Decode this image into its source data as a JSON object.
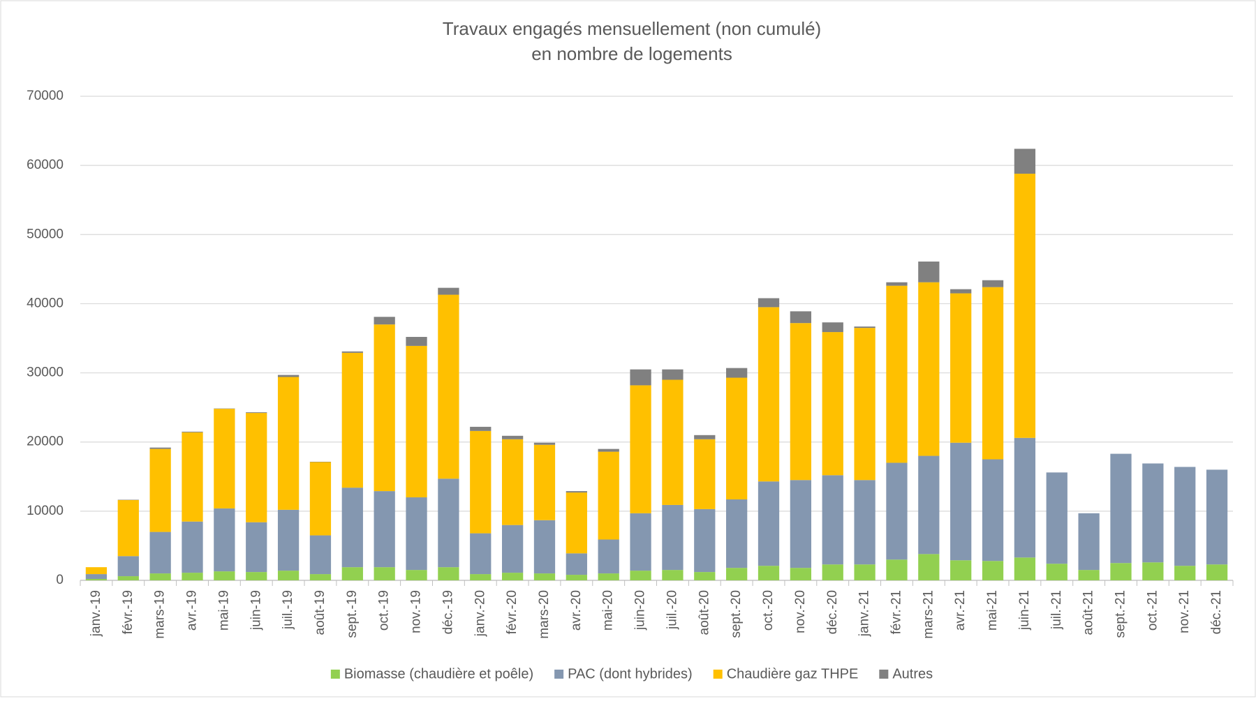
{
  "chart_data": {
    "type": "stacked_bar",
    "title": "Travaux engagés mensuellement (non cumulé)",
    "subtitle": "en nombre de logements",
    "categories": [
      "janv.-19",
      "févr.-19",
      "mars-19",
      "avr.-19",
      "mai-19",
      "juin-19",
      "juil.-19",
      "août-19",
      "sept.-19",
      "oct.-19",
      "nov.-19",
      "déc.-19",
      "janv.-20",
      "févr.-20",
      "mars-20",
      "avr.-20",
      "mai-20",
      "juin-20",
      "juil.-20",
      "août-20",
      "sept.-20",
      "oct.-20",
      "nov.-20",
      "déc.-20",
      "janv.-21",
      "févr.-21",
      "mars-21",
      "avr.-21",
      "mai-21",
      "juin-21",
      "juil.-21",
      "août-21",
      "sept.-21",
      "oct.-21",
      "nov.-21",
      "déc.-21"
    ],
    "series": [
      {
        "name": "Biomasse (chaudière et poêle)",
        "color": "#92d050",
        "values": [
          200,
          600,
          1000,
          1100,
          1300,
          1200,
          1400,
          900,
          1900,
          1900,
          1500,
          1900,
          900,
          1100,
          1000,
          800,
          1000,
          1400,
          1500,
          1200,
          1800,
          2100,
          1800,
          2300,
          2300,
          3000,
          3800,
          2900,
          2800,
          3300,
          2400,
          1500,
          2500,
          2600,
          2100,
          2300
        ]
      },
      {
        "name": "PAC (dont hybrides)",
        "color": "#8497b0",
        "values": [
          700,
          2900,
          6000,
          7400,
          9100,
          7200,
          8800,
          5600,
          11500,
          11000,
          10500,
          12800,
          5900,
          6900,
          7700,
          3100,
          4900,
          8300,
          9400,
          9100,
          9900,
          12200,
          12700,
          12900,
          12200,
          14000,
          14200,
          17000,
          14700,
          17300,
          13200,
          8200,
          15800,
          14300,
          14300,
          13700
        ]
      },
      {
        "name": "Chaudière gaz THPE",
        "color": "#ffc000",
        "values": [
          1000,
          8100,
          12000,
          12900,
          14400,
          15800,
          19200,
          10600,
          19500,
          24100,
          21900,
          26600,
          14800,
          12400,
          10900,
          8800,
          12700,
          18500,
          18100,
          10100,
          17600,
          25200,
          22700,
          20700,
          22000,
          25600,
          25100,
          21600,
          24900,
          38200,
          0,
          0,
          0,
          0,
          0,
          0
        ]
      },
      {
        "name": "Autres",
        "color": "#808080",
        "values": [
          0,
          50,
          200,
          100,
          50,
          100,
          300,
          50,
          200,
          1100,
          1300,
          1000,
          600,
          500,
          300,
          200,
          400,
          2300,
          1500,
          600,
          1400,
          1300,
          1700,
          1400,
          200,
          500,
          3000,
          600,
          1000,
          3600,
          0,
          0,
          0,
          0,
          0,
          0
        ]
      }
    ],
    "ylim": [
      0,
      70000
    ],
    "yticks": [
      0,
      10000,
      20000,
      30000,
      40000,
      50000,
      60000,
      70000
    ],
    "grid": true,
    "legend": "bottom"
  }
}
